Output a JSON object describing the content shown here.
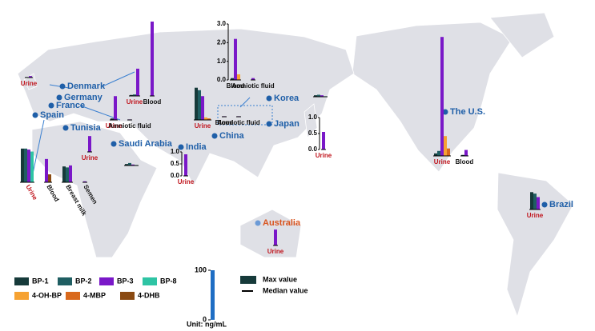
{
  "legend": {
    "items": [
      {
        "name": "BP-1",
        "color": "#163a3a"
      },
      {
        "name": "BP-2",
        "color": "#1f5e62"
      },
      {
        "name": "BP-3",
        "color": "#7a18c8"
      },
      {
        "name": "BP-8",
        "color": "#2ec4a4"
      },
      {
        "name": "4-OH-BP",
        "color": "#f6a232"
      },
      {
        "name": "4-MBP",
        "color": "#d9691c"
      },
      {
        "name": "4-DHB",
        "color": "#8a4a12"
      }
    ],
    "max_value": "Max value",
    "median_value": "Median value"
  },
  "scale": {
    "unit": "Unit: ng/mL",
    "ylim": [
      0,
      100
    ],
    "yticks": [
      0,
      100
    ]
  },
  "countries": [
    {
      "name": "Denmark",
      "color": "#1f5fa8"
    },
    {
      "name": "Germany",
      "color": "#1f5fa8"
    },
    {
      "name": "France",
      "color": "#1f5fa8"
    },
    {
      "name": "Spain",
      "color": "#1f5fa8"
    },
    {
      "name": "Tunisia",
      "color": "#1f5fa8"
    },
    {
      "name": "Saudi Arabia",
      "color": "#1f5fa8"
    },
    {
      "name": "India",
      "color": "#1f5fa8"
    },
    {
      "name": "China",
      "color": "#1f5fa8"
    },
    {
      "name": "Korea",
      "color": "#1f5fa8"
    },
    {
      "name": "Japan",
      "color": "#1f5fa8"
    },
    {
      "name": "The U.S.",
      "color": "#1f5fa8"
    },
    {
      "name": "Brazil",
      "color": "#1f5fa8"
    },
    {
      "name": "Australia",
      "color": "#d9541e"
    }
  ],
  "charts": [
    {
      "groups": [
        {
          "label": "Urine",
          "label_color": "#c0141c",
          "values": [
            null,
            1,
            3,
            null,
            null,
            null,
            null
          ]
        }
      ]
    },
    {
      "groups": [
        {
          "label": "Urine",
          "label_color": "#c0141c",
          "values": [
            2,
            3,
            55,
            null,
            null,
            null,
            null
          ]
        },
        {
          "label": "Blood",
          "label_color": "#111111",
          "values": [
            null,
            null,
            150,
            null,
            null,
            null,
            null
          ]
        }
      ]
    },
    {
      "groups": [
        {
          "label": "Urine",
          "label_color": "#c0141c",
          "values": [
            3,
            null,
            48,
            null,
            null,
            null,
            null
          ]
        },
        {
          "label": "Amniotic fluid",
          "label_color": "#111111",
          "values": [
            null,
            null,
            1,
            null,
            null,
            null,
            null
          ]
        }
      ]
    },
    {
      "groups": [
        {
          "label": "Urine",
          "label_color": "#c0141c",
          "values": [
            68,
            68,
            66,
            62,
            null,
            null,
            null
          ]
        },
        {
          "label": "Blood",
          "label_color": "#111111",
          "values": [
            null,
            null,
            47,
            null,
            null,
            null,
            16
          ]
        },
        {
          "label": "Breast milk",
          "label_color": "#111111",
          "values": [
            32,
            30,
            34,
            null,
            null,
            null,
            null
          ]
        },
        {
          "label": "Semen",
          "label_color": "#111111",
          "values": [
            null,
            null,
            2,
            null,
            null,
            null,
            null
          ]
        }
      ]
    },
    {
      "groups": [
        {
          "label": "Urine",
          "label_color": "#c0141c",
          "values": [
            null,
            null,
            32,
            null,
            null,
            null,
            null
          ]
        }
      ]
    },
    {
      "groups": [
        {
          "label": null,
          "label_color": "#111111",
          "values": [
            3,
            5,
            2,
            1,
            null,
            null,
            null
          ]
        }
      ]
    },
    {
      "ylim": [
        0,
        1
      ],
      "yticks": [
        {
          "value": 0,
          "label": "0.0"
        },
        0.5,
        {
          "value": 1,
          "label": "1.0"
        }
      ],
      "groups": [
        {
          "label": "Urine",
          "label_color": "#c0141c",
          "values": [
            null,
            null,
            0.9,
            null,
            null,
            null,
            null
          ]
        }
      ]
    },
    {
      "groups": [
        {
          "label": "Urine",
          "label_color": "#c0141c",
          "values": [
            65,
            60,
            48,
            null,
            5,
            3,
            null
          ]
        }
      ]
    },
    {
      "ylim": [
        0,
        3
      ],
      "yticks": [
        {
          "value": 0,
          "label": "0.0"
        },
        {
          "value": 1,
          "label": "1.0"
        },
        {
          "value": 2,
          "label": "2.0"
        },
        {
          "value": 3,
          "label": "3.0"
        }
      ],
      "groups": [
        {
          "label": "Blood",
          "label_color": "#111111",
          "values": [
            0.1,
            null,
            2.2,
            null,
            0.3,
            null,
            null
          ]
        },
        {
          "label": "Amniotic fluid",
          "label_color": "#111111",
          "values": [
            null,
            null,
            0.1,
            null,
            null,
            null,
            null
          ]
        }
      ]
    },
    {
      "groups": [
        {
          "label": "Blood",
          "label_color": "#111111",
          "values": [
            null,
            null,
            1,
            null,
            null,
            null,
            null
          ]
        },
        {
          "label": "Amniotic fluid",
          "label_color": "#111111",
          "values": [
            null,
            null,
            1,
            null,
            null,
            null,
            null
          ]
        }
      ]
    },
    {
      "groups": [
        {
          "label": null,
          "label_color": "#111111",
          "values": [
            3,
            4,
            3,
            1,
            null,
            null,
            null
          ]
        }
      ]
    },
    {
      "ylim": [
        0,
        1
      ],
      "yticks": [
        {
          "value": 0,
          "label": "0.0"
        },
        0.5,
        {
          "value": 1,
          "label": "1.0"
        }
      ],
      "groups": [
        {
          "label": "Urine",
          "label_color": "#c0141c",
          "values": [
            null,
            null,
            0.55,
            null,
            null,
            null,
            null
          ]
        }
      ]
    },
    {
      "groups": [
        {
          "label": "Urine",
          "label_color": "#c0141c",
          "values": [
            5,
            10,
            240,
            null,
            40,
            15,
            null
          ]
        },
        {
          "label": "Blood",
          "label_color": "#111111",
          "values": [
            2,
            null,
            12,
            null,
            null,
            null,
            null
          ]
        }
      ]
    },
    {
      "groups": [
        {
          "label": "Urine",
          "label_color": "#c0141c",
          "values": [
            35,
            32,
            25,
            null,
            null,
            null,
            null
          ]
        }
      ]
    },
    {
      "groups": [
        {
          "label": "Urine",
          "label_color": "#c0141c",
          "values": [
            null,
            null,
            32,
            null,
            null,
            null,
            null
          ]
        }
      ]
    }
  ]
}
